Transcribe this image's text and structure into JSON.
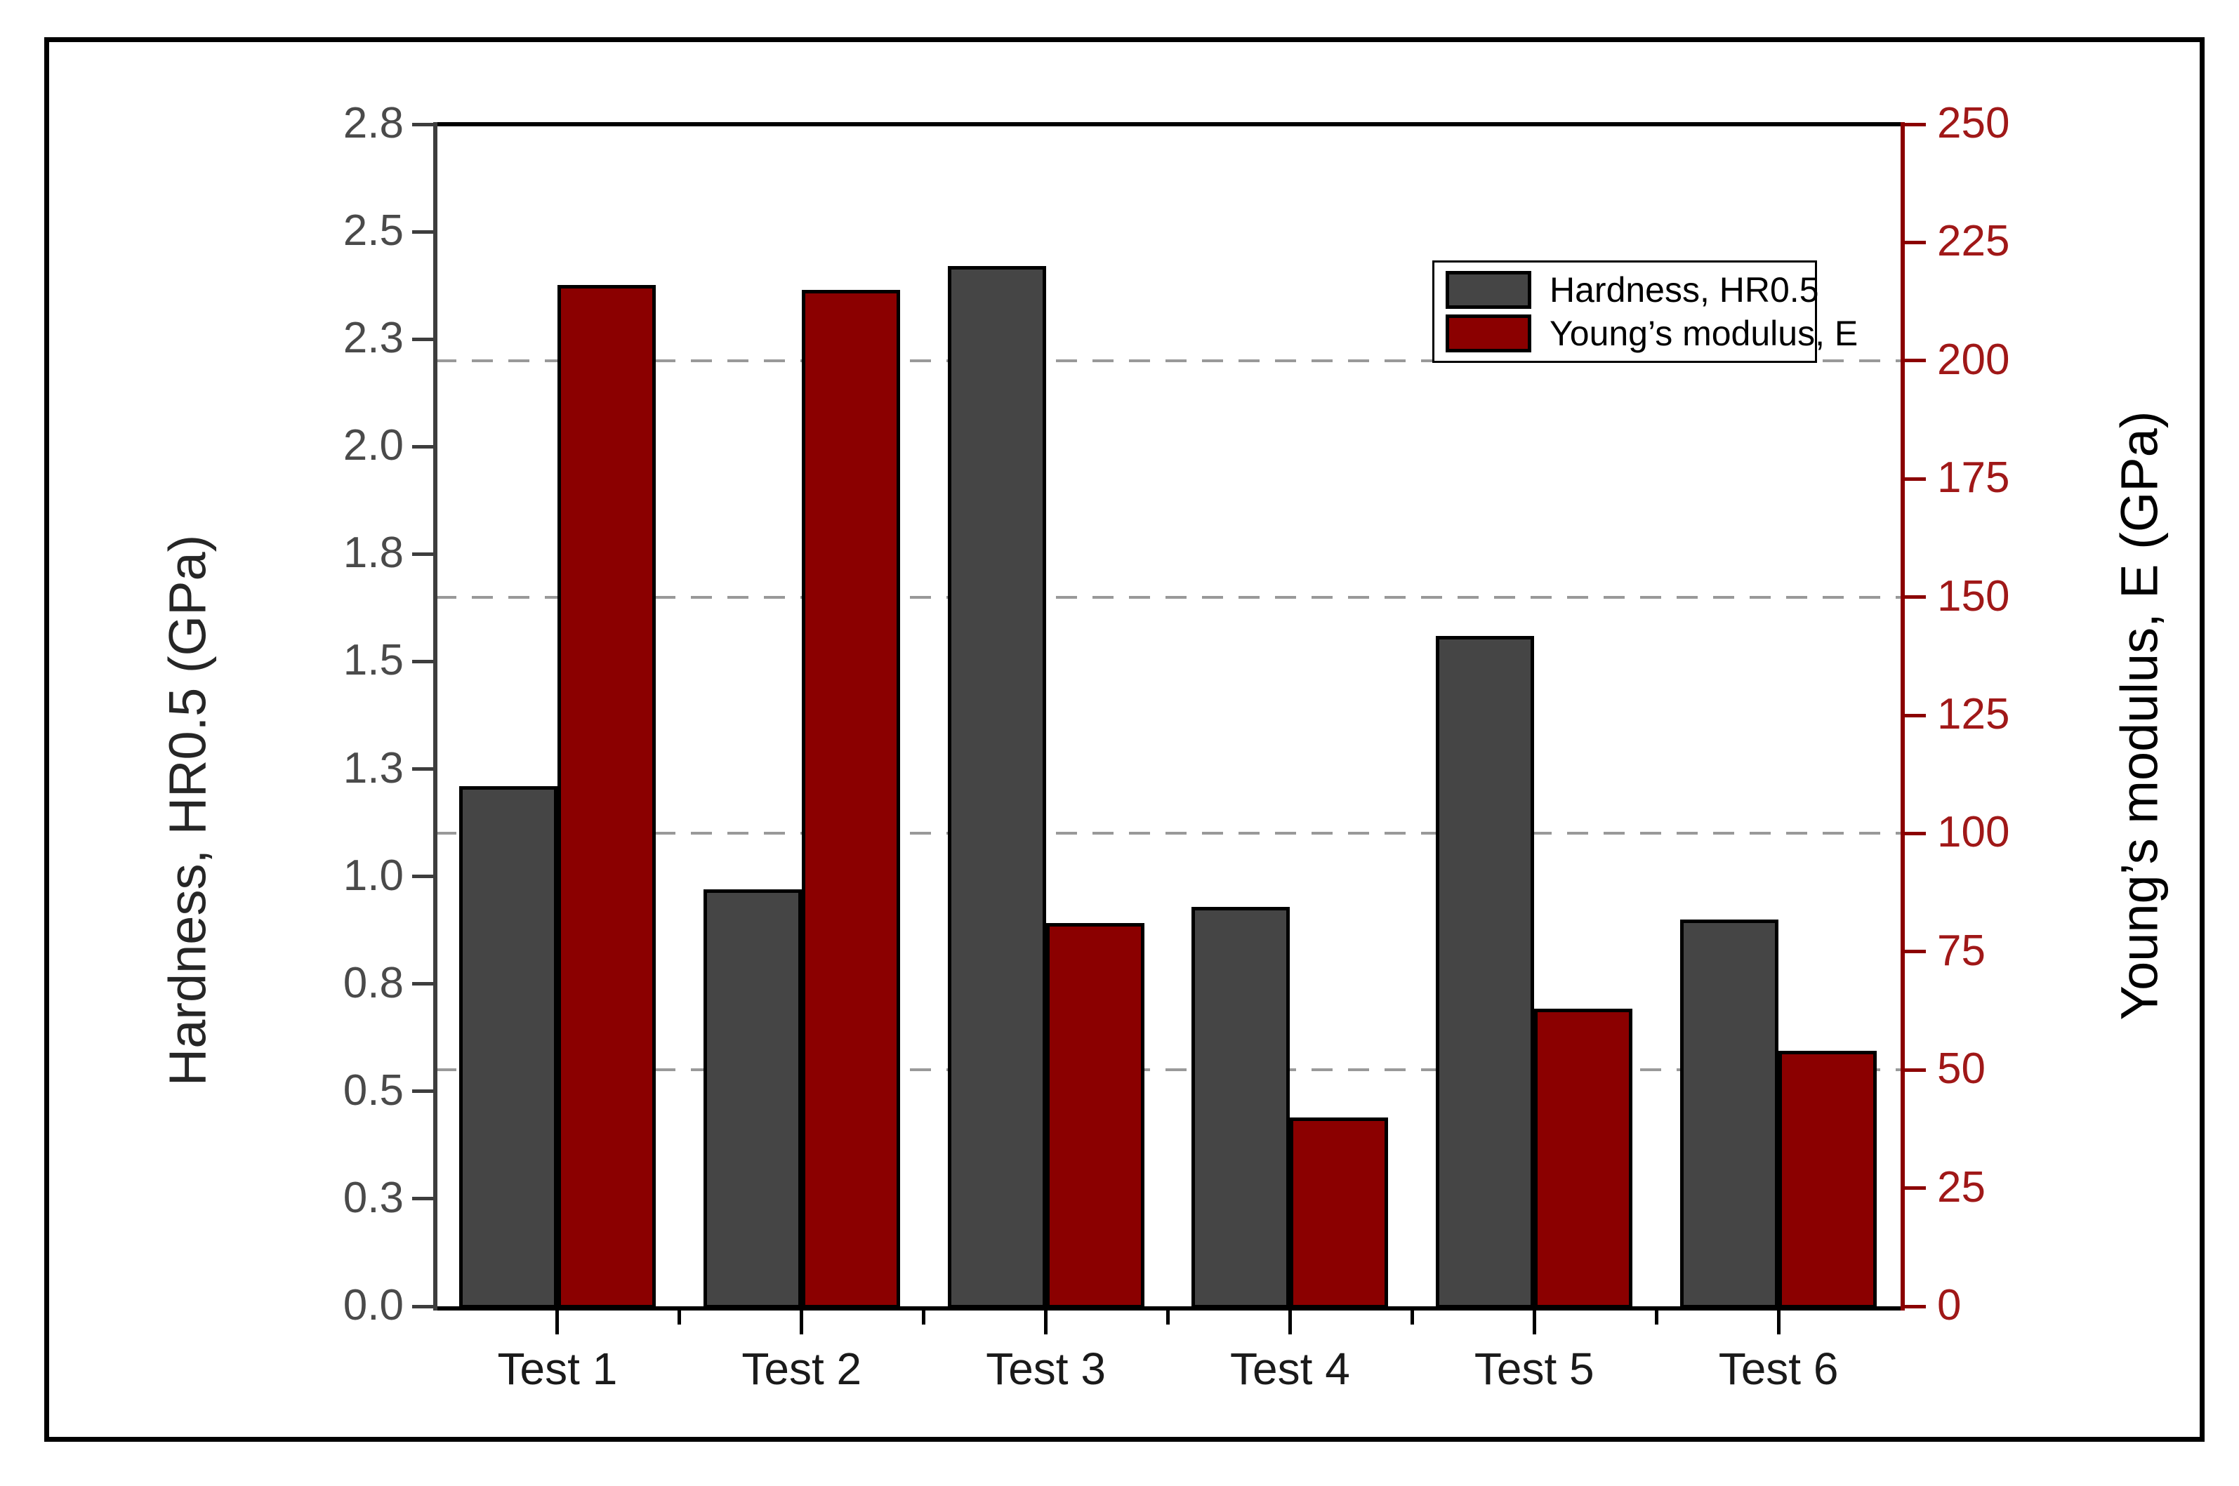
{
  "chart_data": {
    "type": "bar",
    "categories": [
      "Test 1",
      "Test 2",
      "Test 3",
      "Test 4",
      "Test 5",
      "Test 6"
    ],
    "series": [
      {
        "name": "Hardness, HR0.5",
        "axis": "left",
        "color": "#454545",
        "values": [
          1.21,
          0.97,
          2.42,
          0.93,
          1.56,
          0.9
        ]
      },
      {
        "name": "Young’s modulus, E",
        "axis": "right",
        "color": "#8b0000",
        "values": [
          216,
          215,
          81,
          40,
          63,
          54
        ]
      }
    ],
    "left_axis": {
      "label": "Hardness, HR0.5 (GPa)",
      "min": 0,
      "max": 2.75,
      "tick_step": 0.25,
      "tick_labels": [
        "0.0",
        "0.3",
        "0.5",
        "0.8",
        "1.0",
        "1.3",
        "1.5",
        "1.8",
        "2.0",
        "2.3",
        "2.5",
        "2.8"
      ],
      "color_line": "#3d3d3d",
      "color_text": "#4a4a4a"
    },
    "right_axis": {
      "label": "Young’s modulus, E (GPa)",
      "min": 0,
      "max": 250,
      "tick_step": 25,
      "tick_labels": [
        "0",
        "25",
        "50",
        "75",
        "100",
        "125",
        "150",
        "175",
        "200",
        "225",
        "250"
      ],
      "color_line": "#8b0000",
      "color_text": "#a01818"
    },
    "gridlines": {
      "right_axis_values": [
        50,
        100,
        150,
        200
      ],
      "style": "dashed",
      "color": "#999999"
    },
    "legend": {
      "position": "top-right-inside",
      "entries": [
        "Hardness, HR0.5",
        "Young’s modulus, E"
      ]
    },
    "grid": "horizontal-dashed-only",
    "background": "#ffffff"
  }
}
